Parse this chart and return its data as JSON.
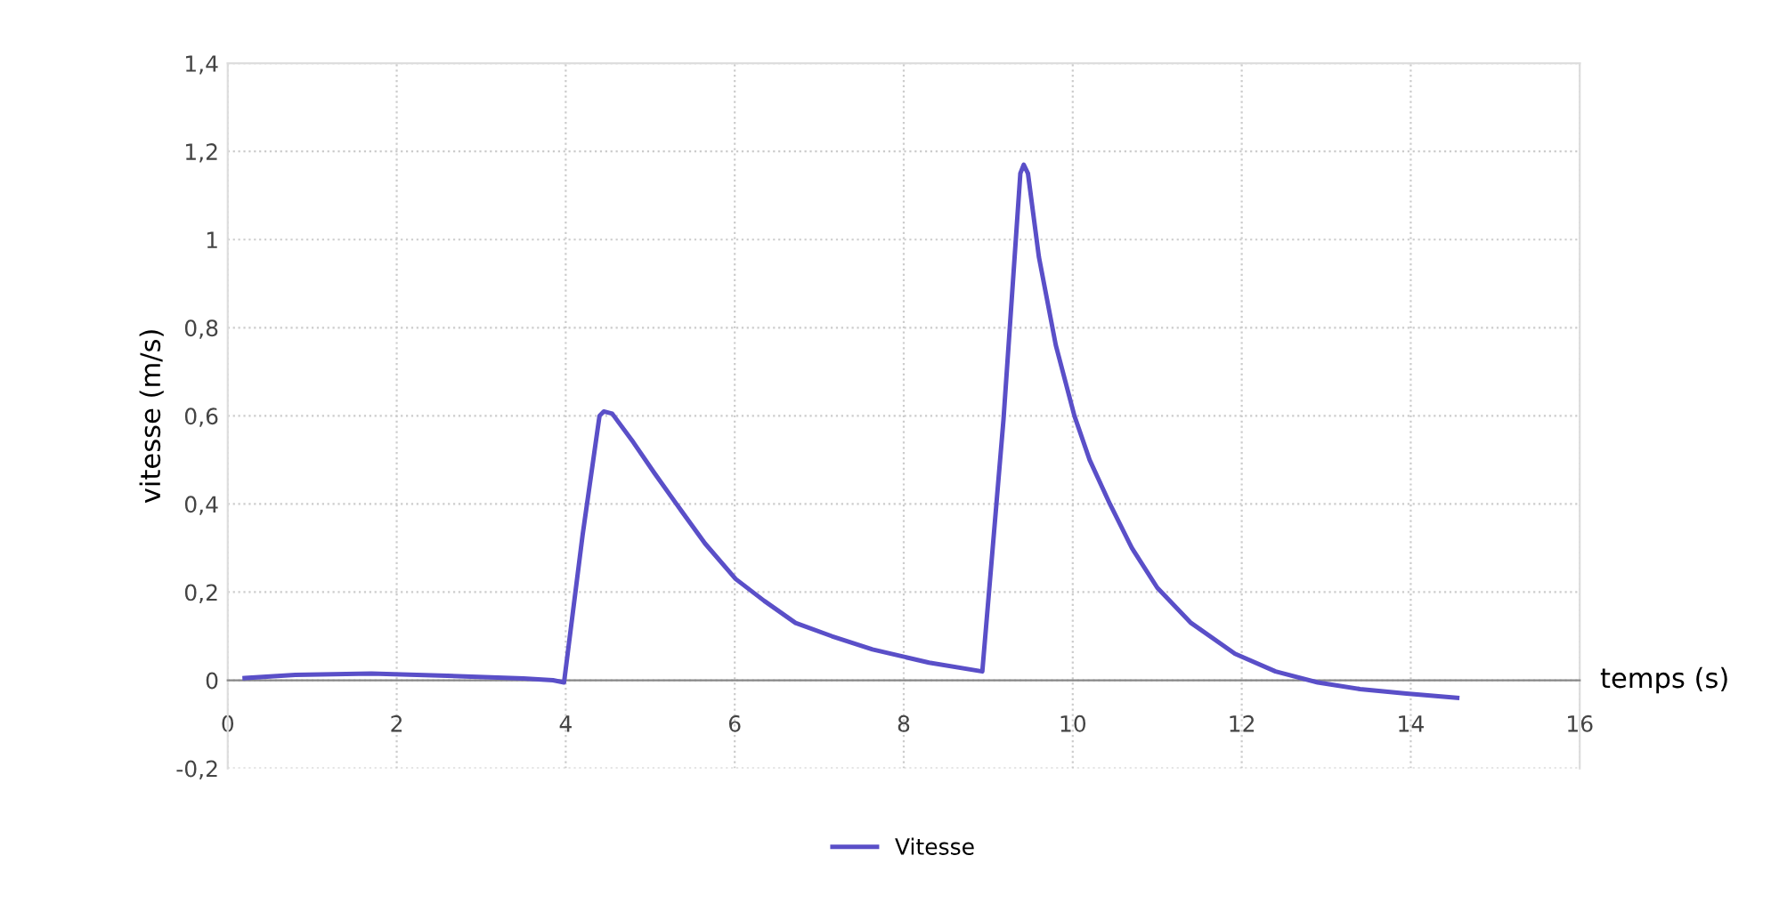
{
  "chart_data": {
    "type": "line",
    "xlabel": "temps (s)",
    "ylabel": "vitesse (m/s)",
    "xlim": [
      0,
      16
    ],
    "xticks": [
      0,
      2,
      4,
      6,
      8,
      10,
      12,
      14,
      16
    ],
    "ylim": [
      -0.2,
      1.4
    ],
    "yticks": [
      {
        "value": -0.2,
        "label": "-0,2"
      },
      0,
      {
        "value": 0.2,
        "label": "0,2"
      },
      {
        "value": 0.4,
        "label": "0,4"
      },
      {
        "value": 0.6,
        "label": "0,6"
      },
      {
        "value": 0.8,
        "label": "0,8"
      },
      1,
      {
        "value": 1.2,
        "label": "1,2"
      },
      {
        "value": 1.4,
        "label": "1,4"
      }
    ],
    "grid": true,
    "legend": "bottom",
    "marker": "none",
    "line_style": "solid",
    "series": [
      {
        "name": "Vitesse",
        "color": "#5a4fc8",
        "x": [
          0.2,
          0.8,
          1.7,
          2.6,
          3.5,
          3.85,
          3.98,
          4.2,
          4.4,
          4.45,
          4.55,
          4.8,
          5.05,
          5.31,
          5.65,
          6.01,
          6.35,
          6.72,
          7.15,
          7.63,
          8.3,
          8.93,
          9.18,
          9.38,
          9.42,
          9.47,
          9.6,
          9.8,
          10.02,
          10.2,
          10.44,
          10.7,
          11.0,
          11.4,
          11.92,
          12.4,
          12.9,
          13.4,
          13.95,
          14.55
        ],
        "values": [
          0.005,
          0.012,
          0.015,
          0.01,
          0.004,
          0.0,
          -0.005,
          0.33,
          0.6,
          0.61,
          0.605,
          0.54,
          0.47,
          0.4,
          0.31,
          0.23,
          0.18,
          0.13,
          0.1,
          0.07,
          0.04,
          0.02,
          0.59,
          1.15,
          1.17,
          1.15,
          0.96,
          0.76,
          0.6,
          0.5,
          0.4,
          0.3,
          0.21,
          0.13,
          0.06,
          0.02,
          -0.005,
          -0.02,
          -0.03,
          -0.04
        ]
      }
    ]
  }
}
